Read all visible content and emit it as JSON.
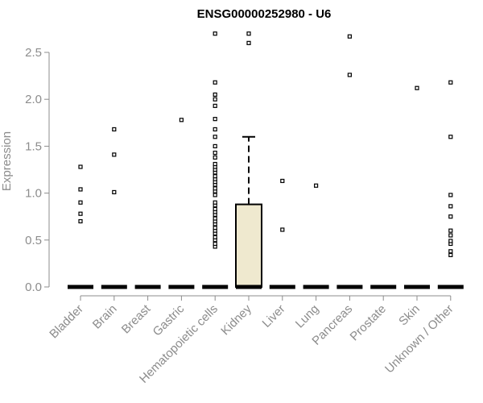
{
  "chart_data": {
    "type": "box",
    "title": "ENSG00000252980 - U6",
    "xlabel": "",
    "ylabel": "Expression",
    "ylim": [
      0,
      2.7
    ],
    "yticks": [
      "0.0",
      "0.5",
      "1.0",
      "1.5",
      "2.0",
      "2.5"
    ],
    "categories": [
      "Bladder",
      "Brain",
      "Breast",
      "Gastric",
      "Hematopoietic cells",
      "Kidney",
      "Liver",
      "Lung",
      "Pancreas",
      "Prostate",
      "Skin",
      "Unknown / Other"
    ],
    "boxes": [
      {
        "category": "Bladder",
        "q1": 0,
        "median": 0,
        "q3": 0,
        "whisker_low": 0,
        "whisker_high": 0,
        "outliers": [
          0.7,
          0.78,
          0.9,
          1.04,
          1.28
        ]
      },
      {
        "category": "Brain",
        "q1": 0,
        "median": 0,
        "q3": 0,
        "whisker_low": 0,
        "whisker_high": 0,
        "outliers": [
          1.01,
          1.41,
          1.68
        ]
      },
      {
        "category": "Breast",
        "q1": 0,
        "median": 0,
        "q3": 0,
        "whisker_low": 0,
        "whisker_high": 0,
        "outliers": []
      },
      {
        "category": "Gastric",
        "q1": 0,
        "median": 0,
        "q3": 0,
        "whisker_low": 0,
        "whisker_high": 0,
        "outliers": [
          1.78
        ]
      },
      {
        "category": "Hematopoietic cells",
        "q1": 0,
        "median": 0,
        "q3": 0,
        "whisker_low": 0,
        "whisker_high": 0,
        "outliers": [
          0.43,
          0.46,
          0.5,
          0.53,
          0.57,
          0.6,
          0.63,
          0.67,
          0.7,
          0.73,
          0.77,
          0.8,
          0.83,
          0.87,
          0.9,
          0.98,
          1.02,
          1.05,
          1.09,
          1.12,
          1.15,
          1.18,
          1.22,
          1.25,
          1.28,
          1.31,
          1.38,
          1.43,
          1.5,
          1.6,
          1.68,
          1.79,
          1.93,
          2.0,
          2.05,
          2.18,
          2.7
        ]
      },
      {
        "category": "Kidney",
        "q1": 0,
        "median": 0,
        "q3": 0.88,
        "whisker_low": 0,
        "whisker_high": 1.6,
        "outliers": [
          2.6,
          2.7
        ]
      },
      {
        "category": "Liver",
        "q1": 0,
        "median": 0,
        "q3": 0,
        "whisker_low": 0,
        "whisker_high": 0,
        "outliers": [
          0.61,
          1.13
        ]
      },
      {
        "category": "Lung",
        "q1": 0,
        "median": 0,
        "q3": 0,
        "whisker_low": 0,
        "whisker_high": 0,
        "outliers": [
          1.08
        ]
      },
      {
        "category": "Pancreas",
        "q1": 0,
        "median": 0,
        "q3": 0,
        "whisker_low": 0,
        "whisker_high": 0,
        "outliers": [
          2.26,
          2.67
        ]
      },
      {
        "category": "Prostate",
        "q1": 0,
        "median": 0,
        "q3": 0,
        "whisker_low": 0,
        "whisker_high": 0,
        "outliers": []
      },
      {
        "category": "Skin",
        "q1": 0,
        "median": 0,
        "q3": 0,
        "whisker_low": 0,
        "whisker_high": 0,
        "outliers": [
          2.12
        ]
      },
      {
        "category": "Unknown / Other",
        "q1": 0,
        "median": 0,
        "q3": 0,
        "whisker_low": 0,
        "whisker_high": 0,
        "outliers": [
          0.34,
          0.38,
          0.46,
          0.49,
          0.55,
          0.6,
          0.75,
          0.86,
          0.98,
          1.6,
          2.18
        ]
      }
    ],
    "colors": {
      "box_fill": "#efe9cf",
      "box_stroke": "#000000",
      "axis": "#8c8c8c",
      "title": "#000000"
    }
  }
}
